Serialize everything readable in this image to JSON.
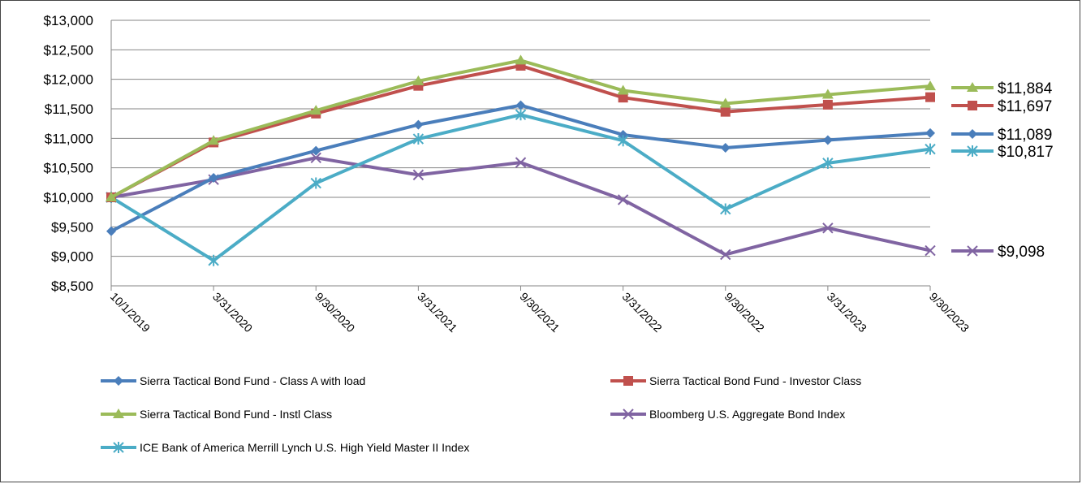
{
  "chart_data": {
    "type": "line",
    "title": "",
    "xlabel": "",
    "ylabel": "",
    "categories": [
      "10/1/2019",
      "3/31/2020",
      "9/30/2020",
      "3/31/2021",
      "9/30/2021",
      "3/31/2022",
      "9/30/2022",
      "3/31/2023",
      "9/30/2023"
    ],
    "ylim": [
      8500,
      13000
    ],
    "yticks": [
      8500,
      9000,
      9500,
      10000,
      10500,
      11000,
      11500,
      12000,
      12500,
      13000
    ],
    "ytick_labels": [
      "$8,500",
      "$9,000",
      "$9,500",
      "$10,000",
      "$10,500",
      "$11,000",
      "$11,500",
      "$12,000",
      "$12,500",
      "$13,000"
    ],
    "grid": true,
    "legend_position": "bottom",
    "series": [
      {
        "name": "Sierra Tactical Bond Fund - Class A with load",
        "color": "#4a7ebb",
        "marker": "diamond",
        "values": [
          9425,
          10330,
          10790,
          11230,
          11560,
          11060,
          10840,
          10970,
          11089
        ],
        "end_label": "$11,089"
      },
      {
        "name": "Sierra Tactical Bond Fund - Investor Class",
        "color": "#c0504d",
        "marker": "square",
        "values": [
          10000,
          10930,
          11420,
          11890,
          12230,
          11690,
          11450,
          11570,
          11697
        ],
        "end_label": "$11,697"
      },
      {
        "name": "Sierra Tactical Bond Fund - Instl Class",
        "color": "#9bbb59",
        "marker": "triangle",
        "values": [
          10000,
          10960,
          11470,
          11970,
          12320,
          11810,
          11590,
          11740,
          11884
        ],
        "end_label": "$11,884"
      },
      {
        "name": "Bloomberg U.S. Aggregate Bond Index",
        "color": "#8064a2",
        "marker": "x",
        "values": [
          10000,
          10300,
          10670,
          10380,
          10590,
          9960,
          9030,
          9480,
          9098
        ],
        "end_label": "$9,098"
      },
      {
        "name": "ICE Bank of America Merrill Lynch U.S. High Yield Master II Index",
        "color": "#4bacc6",
        "marker": "asterisk",
        "values": [
          10000,
          8930,
          10240,
          10990,
          11400,
          10960,
          9800,
          10580,
          10817
        ],
        "end_label": "$10,817"
      }
    ]
  }
}
